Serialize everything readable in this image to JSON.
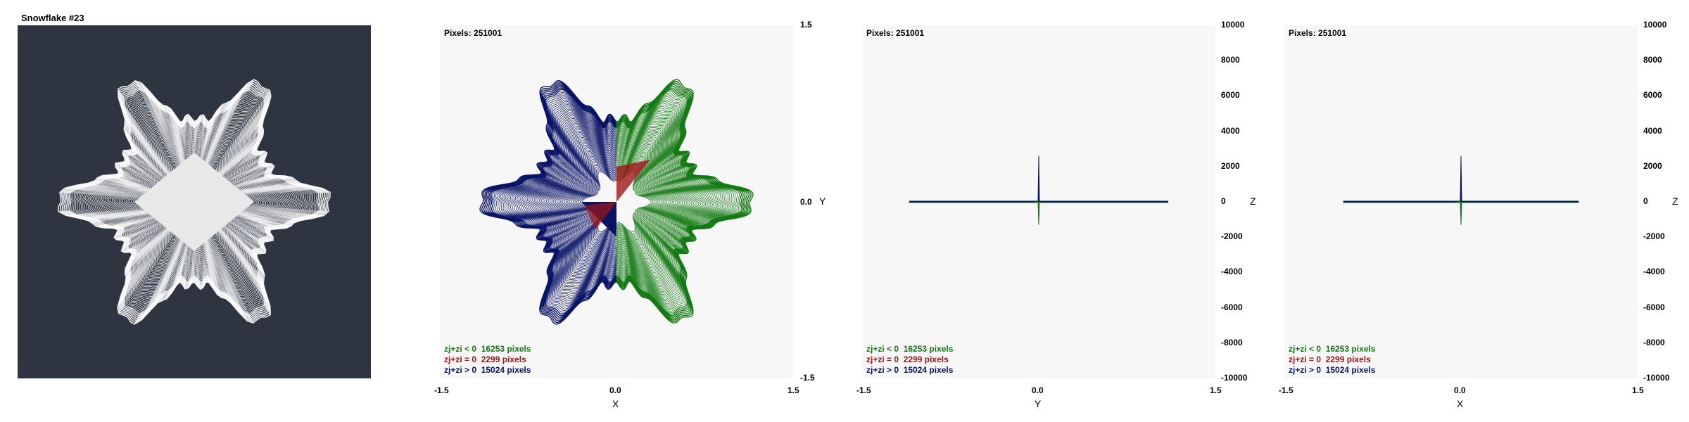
{
  "window": {
    "title": "Snowflake #23"
  },
  "colors": {
    "background_dark": "#2e3440",
    "panel_light": "#f7f7f7",
    "negative": "#137a13",
    "zero": "#a01515",
    "positive": "#0a1466",
    "outline": "#ffffff"
  },
  "chart_data": [
    {
      "type": "scatter",
      "title": "Snowflake #23",
      "description_mode": "rendered fractal, white curves on dark background",
      "xlim": [
        -1.5,
        1.5
      ],
      "ylim": [
        -1.5,
        1.5
      ]
    },
    {
      "type": "scatter",
      "pixels_label": "Pixels: 251001",
      "xlabel": "X",
      "ylabel": "Y",
      "xlim": [
        -1.5,
        1.5
      ],
      "ylim": [
        -1.5,
        1.5
      ],
      "x_ticks": [
        "-1.5",
        "0.0",
        "1.5"
      ],
      "y_ticks": [
        "1.5",
        "0.0",
        "-1.5"
      ],
      "series": [
        {
          "label": "zj+zi < 0",
          "count_text": "16253 pixels",
          "color": "#137a13"
        },
        {
          "label": "zj+zi = 0",
          "count_text": "2299 pixels",
          "color": "#a01515"
        },
        {
          "label": "zj+zi > 0",
          "count_text": "15024 pixels",
          "color": "#0a1466"
        }
      ]
    },
    {
      "type": "scatter",
      "pixels_label": "Pixels: 251001",
      "xlabel": "Y",
      "ylabel": "Z",
      "xlim": [
        -1.5,
        1.5
      ],
      "ylim": [
        -10000,
        10000
      ],
      "x_ticks": [
        "-1.5",
        "0.0",
        "1.5"
      ],
      "y_ticks": [
        "10000",
        "8000",
        "6000",
        "4000",
        "2000",
        "0",
        "-2000",
        "-4000",
        "-6000",
        "-8000",
        "-10000"
      ],
      "spike": {
        "x": 0.0,
        "z_max": 2600,
        "z_min": -1300
      },
      "baseline_range": [
        -1.1,
        1.1
      ],
      "series": [
        {
          "label": "zj+zi < 0",
          "count_text": "16253 pixels",
          "color": "#137a13"
        },
        {
          "label": "zj+zi = 0",
          "count_text": "2299 pixels",
          "color": "#a01515"
        },
        {
          "label": "zj+zi > 0",
          "count_text": "15024 pixels",
          "color": "#0a1466"
        }
      ]
    },
    {
      "type": "scatter",
      "pixels_label": "Pixels: 251001",
      "xlabel": "X",
      "ylabel": "Z",
      "xlim": [
        -1.5,
        1.5
      ],
      "ylim": [
        -10000,
        10000
      ],
      "x_ticks": [
        "-1.5",
        "0.0",
        "1.5"
      ],
      "y_ticks": [
        "10000",
        "8000",
        "6000",
        "4000",
        "2000",
        "0",
        "-2000",
        "-4000",
        "-6000",
        "-8000",
        "-10000"
      ],
      "spike": {
        "x": 0.0,
        "z_max": 2600,
        "z_min": -1300
      },
      "baseline_range": [
        -1.0,
        1.0
      ],
      "series": [
        {
          "label": "zj+zi < 0",
          "count_text": "16253 pixels",
          "color": "#137a13"
        },
        {
          "label": "zj+zi = 0",
          "count_text": "2299 pixels",
          "color": "#a01515"
        },
        {
          "label": "zj+zi > 0",
          "count_text": "15024 pixels",
          "color": "#0a1466"
        }
      ]
    }
  ]
}
